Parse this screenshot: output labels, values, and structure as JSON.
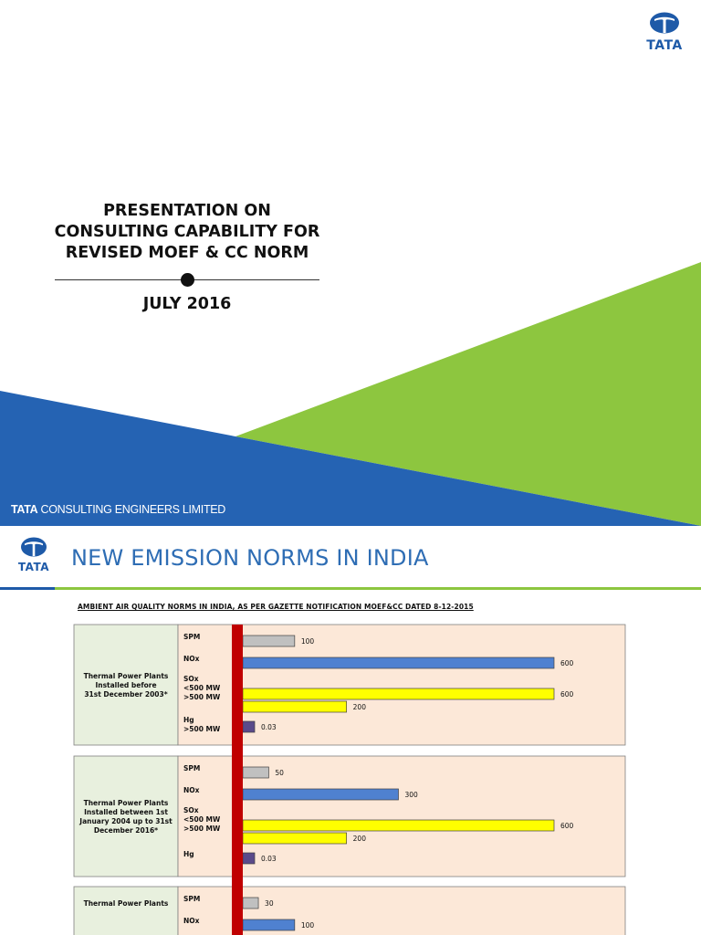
{
  "slide1": {
    "title_lines": [
      "PRESENTATION ON",
      "CONSULTING CAPABILITY FOR",
      "REVISED MOEF & CC NORM"
    ],
    "date": "JULY 2016",
    "footer_brand": "TATA",
    "footer_company": "CONSULTING ENGINEERS LIMITED",
    "logo_text": "TATA",
    "colors": {
      "blue": "#2563b3",
      "green": "#8dc63f"
    }
  },
  "slide2": {
    "logo_text": "TATA",
    "title": "NEW EMISSION NORMS IN INDIA",
    "chart_heading": "AMBIENT AIR QUALITY NORMS IN INDIA, AS PER GAZETTE NOTIFICATION  MOEF&CC DATED  8-12-2015"
  },
  "chart_data": {
    "type": "bar",
    "orientation": "horizontal",
    "title": "AMBIENT AIR QUALITY NORMS IN INDIA, AS PER GAZETTE NOTIFICATION  MOEF&CC DATED  8-12-2015",
    "xlim": [
      0,
      600
    ],
    "colors": {
      "SPM": "#c0c0c0",
      "NOx": "#4f81d0",
      "SOx": "#ffff00",
      "Hg": "#5a4a8a",
      "panel": "#fce8d8",
      "label_cell": "#e8f0de",
      "axis": "#c00000"
    },
    "groups": [
      {
        "label_lines": [
          "Thermal Power Plants",
          "Installed  before",
          "31st December 2003*"
        ],
        "rows": [
          {
            "label_lines": [
              "SPM"
            ],
            "bars": [
              {
                "pollutant": "SPM",
                "value": 100,
                "label": "100"
              }
            ]
          },
          {
            "label_lines": [
              "NOx"
            ],
            "bars": [
              {
                "pollutant": "NOx",
                "value": 600,
                "label": "600"
              }
            ]
          },
          {
            "label_lines": [
              "SOx",
              "<500 MW",
              ">500 MW"
            ],
            "bars": [
              {
                "pollutant": "SOx",
                "value": 600,
                "label": "600"
              },
              {
                "pollutant": "SOx",
                "value": 200,
                "label": "200"
              }
            ]
          },
          {
            "label_lines": [
              "Hg",
              ">500 MW"
            ],
            "bars": [
              {
                "pollutant": "Hg",
                "value": 0.03,
                "label": "0.03"
              }
            ]
          }
        ]
      },
      {
        "label_lines": [
          "Thermal Power Plants",
          "Installed between 1st",
          "January 2004 up to 31st",
          "December 2016*"
        ],
        "rows": [
          {
            "label_lines": [
              "SPM"
            ],
            "bars": [
              {
                "pollutant": "SPM",
                "value": 50,
                "label": "50"
              }
            ]
          },
          {
            "label_lines": [
              "NOx"
            ],
            "bars": [
              {
                "pollutant": "NOx",
                "value": 300,
                "label": "300"
              }
            ]
          },
          {
            "label_lines": [
              "SOx",
              "<500 MW",
              ">500 MW"
            ],
            "bars": [
              {
                "pollutant": "SOx",
                "value": 600,
                "label": "600"
              },
              {
                "pollutant": "SOx",
                "value": 200,
                "label": "200"
              }
            ]
          },
          {
            "label_lines": [
              "Hg"
            ],
            "bars": [
              {
                "pollutant": "Hg",
                "value": 0.03,
                "label": "0.03"
              }
            ]
          }
        ]
      },
      {
        "label_lines": [
          "Thermal Power Plants"
        ],
        "rows": [
          {
            "label_lines": [
              "SPM"
            ],
            "bars": [
              {
                "pollutant": "SPM",
                "value": 30,
                "label": "30"
              }
            ]
          },
          {
            "label_lines": [
              "NOx"
            ],
            "bars": [
              {
                "pollutant": "NOx",
                "value": 100,
                "label": "100"
              }
            ]
          }
        ]
      }
    ]
  }
}
